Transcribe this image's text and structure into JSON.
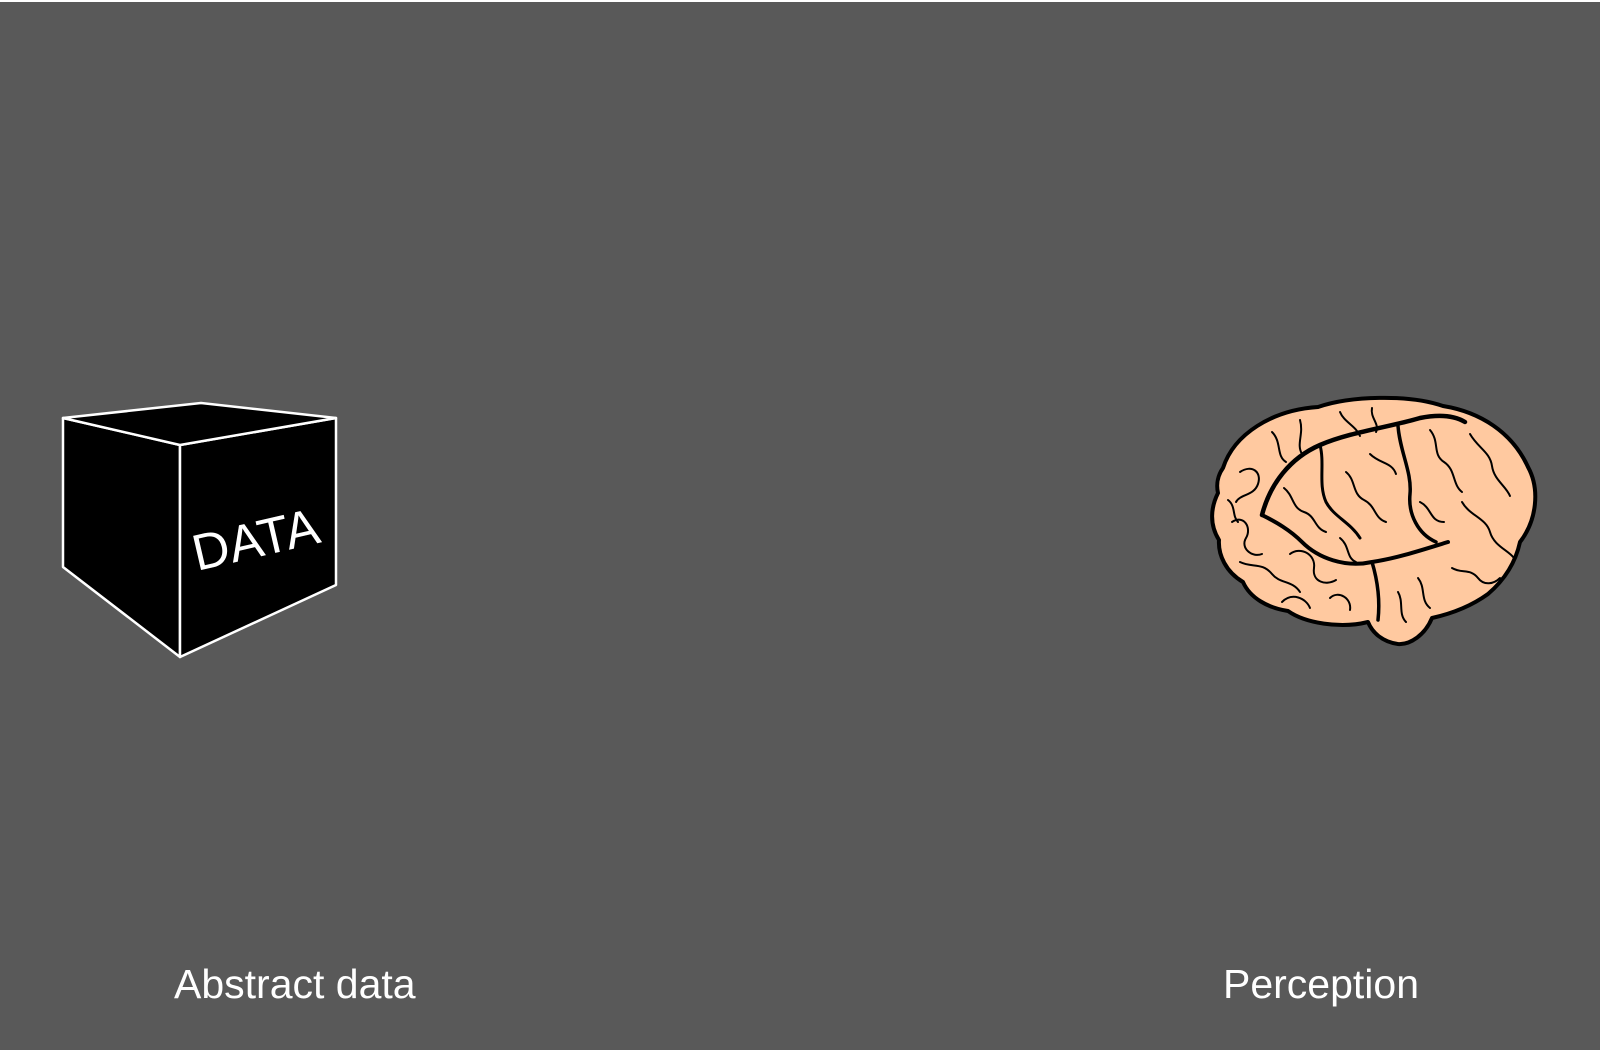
{
  "colors": {
    "background": "#595959",
    "cube_fill": "#000000",
    "cube_edge": "#ffffff",
    "brain_fill": "#ffc9a0",
    "brain_outline": "#000000",
    "caption_text": "#ffffff"
  },
  "cube": {
    "label": "DATA",
    "icon": "data-cube-icon"
  },
  "brain": {
    "icon": "brain-icon"
  },
  "captions": {
    "left": "Abstract data",
    "right": "Perception"
  }
}
